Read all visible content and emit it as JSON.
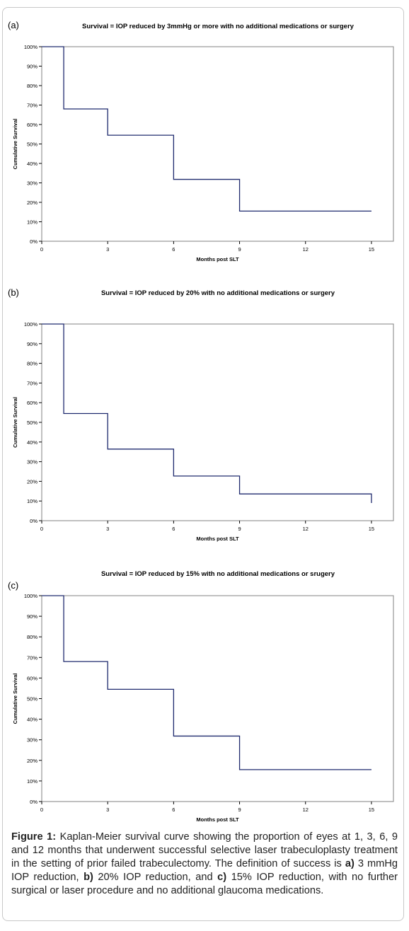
{
  "chart_data": [
    {
      "type": "line",
      "step": true,
      "panel_label": "(a)",
      "title": "Survival = IOP reduced by 3mmHg or more with no additional medications or surgery",
      "xlabel": "Months post SLT",
      "ylabel": "Cumulative Survival",
      "x_ticks": [
        "0",
        "3",
        "6",
        "9",
        "12",
        "15"
      ],
      "y_ticks": [
        "0%",
        "10%",
        "20%",
        "30%",
        "40%",
        "50%",
        "60%",
        "70%",
        "80%",
        "90%",
        "100%"
      ],
      "xlim": [
        0,
        16
      ],
      "ylim": [
        0,
        1
      ],
      "grid": false,
      "line_color": "#1f2a6e",
      "series": [
        {
          "x": [
            0,
            1,
            3,
            6,
            9,
            15
          ],
          "y": [
            1.0,
            0.68,
            0.545,
            0.318,
            0.155,
            0.155
          ]
        }
      ]
    },
    {
      "type": "line",
      "step": true,
      "panel_label": "(b)",
      "title": "Survival = IOP reduced by 20% with no additional medications or surgery",
      "xlabel": "Months post SLT",
      "ylabel": "Cumulative Survival",
      "x_ticks": [
        "0",
        "3",
        "6",
        "9",
        "12",
        "15"
      ],
      "y_ticks": [
        "0%",
        "10%",
        "20%",
        "30%",
        "40%",
        "50%",
        "60%",
        "70%",
        "80%",
        "90%",
        "100%"
      ],
      "xlim": [
        0,
        16
      ],
      "ylim": [
        0,
        1
      ],
      "grid": false,
      "line_color": "#1f2a6e",
      "series": [
        {
          "x": [
            0,
            1,
            3,
            6,
            9,
            15
          ],
          "y": [
            1.0,
            0.545,
            0.364,
            0.227,
            0.136,
            0.136
          ],
          "final_drop": 0.09
        }
      ]
    },
    {
      "type": "line",
      "step": true,
      "panel_label": "(c)",
      "title": "Survival = IOP reduced by 15% with no additional medications or srugery",
      "xlabel": "Months post SLT",
      "ylabel": "Cumulative Survival",
      "x_ticks": [
        "0",
        "3",
        "6",
        "9",
        "12",
        "15"
      ],
      "y_ticks": [
        "0%",
        "10%",
        "20%",
        "30%",
        "40%",
        "50%",
        "60%",
        "70%",
        "80%",
        "90%",
        "100%"
      ],
      "xlim": [
        0,
        16
      ],
      "ylim": [
        0,
        1
      ],
      "grid": false,
      "line_color": "#1f2a6e",
      "series": [
        {
          "x": [
            0,
            1,
            3,
            6,
            9,
            15
          ],
          "y": [
            1.0,
            0.68,
            0.545,
            0.318,
            0.155,
            0.155
          ]
        }
      ]
    }
  ],
  "caption": {
    "label": "Figure 1:",
    "part1": " Kaplan-Meier survival curve showing the proportion of eyes at 1, 3, 6, 9 and 12 months that underwent successful selective laser trabeculoplasty treatment in the setting of prior failed trabeculectomy. The definition of success is ",
    "a_label": "a)",
    "a_text": " 3 mmHg IOP reduction, ",
    "b_label": "b)",
    "b_text": " 20% IOP reduction, and ",
    "c_label": "c)",
    "c_text": " 15% IOP reduction, with no further surgical or laser procedure and no additional glaucoma medications."
  }
}
